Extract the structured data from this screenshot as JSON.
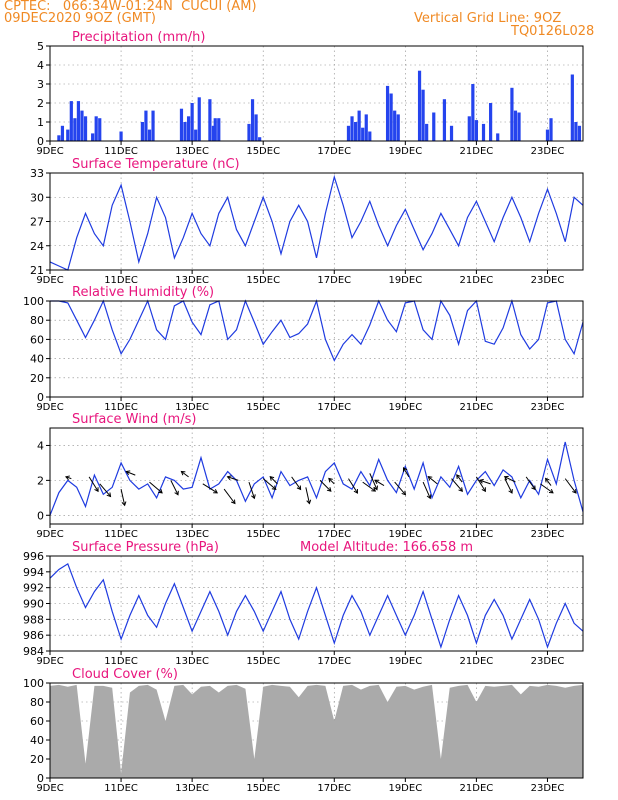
{
  "header": {
    "line1": "CPTEC:   066:34W-01:24N  CUCUI (AM)",
    "line2": "09DEC2020 9OZ (GMT)",
    "grid_note": "Vertical Grid Line: 9OZ",
    "code": "TQ0126L028"
  },
  "colors": {
    "header": "#f08a24",
    "title": "#e8157d",
    "series": "#1f3be0",
    "bars": "#2544ee",
    "cloud": "#aaaaaa",
    "arrows": "#000000"
  },
  "x_axis": {
    "ticks": [
      "9DEC",
      "11DEC",
      "13DEC",
      "15DEC",
      "17DEC",
      "19DEC",
      "21DEC",
      "23DEC"
    ],
    "tick_positions": [
      0,
      2,
      4,
      6,
      8,
      10,
      12,
      14
    ],
    "range": [
      0,
      15
    ]
  },
  "chart_data": [
    {
      "type": "bar",
      "title": "Precipitation (mm/h)",
      "ylim": [
        0,
        5
      ],
      "yticks": [
        0,
        1,
        2,
        3,
        4,
        5
      ],
      "x": [
        0.25,
        0.35,
        0.5,
        0.6,
        0.7,
        0.8,
        0.9,
        1.0,
        1.2,
        1.3,
        1.4,
        2.0,
        2.6,
        2.7,
        2.8,
        2.9,
        3.7,
        3.8,
        3.9,
        4.0,
        4.1,
        4.2,
        4.5,
        4.6,
        4.65,
        4.75,
        5.6,
        5.7,
        5.8,
        5.9,
        8.4,
        8.5,
        8.6,
        8.7,
        8.8,
        8.9,
        9.0,
        9.5,
        9.6,
        9.7,
        9.8,
        10.4,
        10.5,
        10.6,
        10.8,
        11.1,
        11.3,
        11.8,
        11.9,
        12.0,
        12.2,
        12.4,
        12.6,
        13.0,
        13.1,
        13.2,
        14.0,
        14.1,
        14.7,
        14.8,
        14.9
      ],
      "values": [
        0.3,
        0.8,
        0.6,
        2.1,
        1.2,
        2.1,
        1.6,
        1.3,
        0.4,
        1.3,
        1.2,
        0.5,
        1.0,
        1.6,
        0.6,
        1.6,
        1.7,
        1.0,
        1.3,
        2.0,
        0.6,
        2.3,
        2.2,
        0.8,
        1.2,
        1.2,
        0.9,
        2.2,
        1.4,
        0.2,
        0.8,
        1.3,
        1.0,
        1.6,
        0.7,
        1.4,
        0.5,
        2.9,
        2.5,
        1.6,
        1.4,
        3.7,
        2.7,
        0.9,
        1.5,
        2.2,
        0.8,
        1.3,
        3.0,
        1.1,
        0.9,
        2.0,
        0.4,
        2.8,
        1.6,
        1.5,
        0.6,
        1.2,
        3.5,
        1.0,
        0.8
      ]
    },
    {
      "type": "line",
      "title": "Surface Temperature (nC)",
      "ylim": [
        21,
        33
      ],
      "yticks": [
        21,
        24,
        27,
        30,
        33
      ],
      "x": [
        0,
        0.25,
        0.5,
        0.75,
        1.0,
        1.25,
        1.5,
        1.75,
        2.0,
        2.25,
        2.5,
        2.75,
        3.0,
        3.25,
        3.5,
        3.75,
        4.0,
        4.25,
        4.5,
        4.75,
        5.0,
        5.25,
        5.5,
        5.75,
        6.0,
        6.25,
        6.5,
        6.75,
        7.0,
        7.25,
        7.5,
        7.75,
        8.0,
        8.25,
        8.5,
        8.75,
        9.0,
        9.25,
        9.5,
        9.75,
        10.0,
        10.25,
        10.5,
        10.75,
        11.0,
        11.25,
        11.5,
        11.75,
        12.0,
        12.25,
        12.5,
        12.75,
        13.0,
        13.25,
        13.5,
        13.75,
        14.0,
        14.25,
        14.5,
        14.75,
        15.0
      ],
      "values": [
        22.0,
        21.5,
        21.0,
        25.0,
        28.0,
        25.5,
        24.0,
        29.0,
        31.5,
        27.0,
        22.0,
        25.5,
        30.0,
        27.5,
        22.5,
        25.0,
        28.0,
        25.5,
        24.0,
        28.0,
        30.0,
        26.0,
        24.0,
        27.0,
        30.0,
        27.0,
        23.0,
        27.0,
        29.0,
        27.0,
        22.5,
        28.0,
        32.5,
        29.0,
        25.0,
        27.0,
        29.5,
        26.5,
        24.0,
        26.5,
        28.5,
        26.0,
        23.5,
        25.5,
        28.0,
        26.0,
        24.0,
        27.5,
        29.5,
        27.0,
        24.5,
        27.5,
        30.0,
        27.5,
        24.5,
        28.0,
        31.0,
        28.0,
        24.5,
        30.0,
        29.0
      ]
    },
    {
      "type": "line",
      "title": "Relative Humidity (%)",
      "ylim": [
        0,
        100
      ],
      "yticks": [
        0,
        20,
        40,
        60,
        80,
        100
      ],
      "x": [
        0,
        0.25,
        0.5,
        0.75,
        1.0,
        1.25,
        1.5,
        1.75,
        2.0,
        2.25,
        2.5,
        2.75,
        3.0,
        3.25,
        3.5,
        3.75,
        4.0,
        4.25,
        4.5,
        4.75,
        5.0,
        5.25,
        5.5,
        5.75,
        6.0,
        6.25,
        6.5,
        6.75,
        7.0,
        7.25,
        7.5,
        7.75,
        8.0,
        8.25,
        8.5,
        8.75,
        9.0,
        9.25,
        9.5,
        9.75,
        10.0,
        10.25,
        10.5,
        10.75,
        11.0,
        11.25,
        11.5,
        11.75,
        12.0,
        12.25,
        12.5,
        12.75,
        13.0,
        13.25,
        13.5,
        13.75,
        14.0,
        14.25,
        14.5,
        14.75,
        15.0
      ],
      "values": [
        100,
        100,
        98,
        80,
        62,
        80,
        100,
        70,
        45,
        60,
        80,
        100,
        70,
        60,
        95,
        100,
        78,
        65,
        96,
        100,
        60,
        70,
        100,
        78,
        55,
        68,
        80,
        62,
        66,
        76,
        100,
        60,
        38,
        55,
        65,
        55,
        75,
        100,
        80,
        68,
        98,
        100,
        70,
        60,
        100,
        85,
        55,
        90,
        100,
        58,
        55,
        72,
        100,
        65,
        50,
        60,
        98,
        100,
        60,
        45,
        78
      ]
    },
    {
      "type": "line",
      "title": "Surface Wind (m/s)",
      "ylim": [
        -0.5,
        5
      ],
      "yticks": [
        0,
        2,
        4
      ],
      "x": [
        0,
        0.25,
        0.5,
        0.75,
        1.0,
        1.25,
        1.5,
        1.75,
        2.0,
        2.25,
        2.5,
        2.75,
        3.0,
        3.25,
        3.5,
        3.75,
        4.0,
        4.25,
        4.5,
        4.75,
        5.0,
        5.25,
        5.5,
        5.75,
        6.0,
        6.25,
        6.5,
        6.75,
        7.0,
        7.25,
        7.5,
        7.75,
        8.0,
        8.25,
        8.5,
        8.75,
        9.0,
        9.25,
        9.5,
        9.75,
        10.0,
        10.25,
        10.5,
        10.75,
        11.0,
        11.25,
        11.5,
        11.75,
        12.0,
        12.25,
        12.5,
        12.75,
        13.0,
        13.25,
        13.5,
        13.75,
        14.0,
        14.25,
        14.5,
        14.75,
        15.0
      ],
      "values": [
        0.0,
        1.3,
        2.0,
        1.6,
        0.5,
        2.3,
        1.2,
        1.6,
        3.0,
        2.0,
        1.5,
        1.8,
        1.0,
        2.2,
        2.0,
        1.5,
        1.6,
        3.3,
        1.5,
        1.8,
        2.5,
        2.0,
        0.8,
        1.8,
        2.2,
        1.0,
        2.5,
        1.7,
        2.0,
        2.2,
        1.0,
        2.5,
        3.0,
        1.8,
        1.5,
        2.5,
        1.7,
        3.2,
        2.0,
        1.3,
        2.8,
        1.5,
        3.0,
        1.0,
        2.2,
        1.6,
        2.8,
        1.2,
        2.0,
        2.5,
        1.7,
        2.6,
        2.2,
        1.0,
        2.0,
        1.2,
        3.2,
        1.8,
        4.2,
        2.0,
        0.2
      ],
      "arrows_x": [
        0.6,
        1.1,
        1.4,
        2.0,
        2.4,
        2.8,
        3.4,
        3.9,
        4.3,
        4.9,
        5.3,
        5.6,
        6.0,
        6.4,
        6.8,
        7.2,
        7.6,
        8.0,
        8.4,
        8.8,
        9.0,
        9.4,
        9.7,
        10.1,
        10.5,
        10.9,
        11.3,
        11.6,
        12.0,
        12.4,
        12.8,
        13.1,
        13.4,
        13.8,
        14.1,
        14.5
      ],
      "arrows_y": [
        2.1,
        2.2,
        1.8,
        1.5,
        2.3,
        1.9,
        2.0,
        2.2,
        1.8,
        1.5,
        2.0,
        1.9,
        2.1,
        1.8,
        2.2,
        1.6,
        2.0,
        1.8,
        2.1,
        1.9,
        2.4,
        1.7,
        1.9,
        2.2,
        1.9,
        1.8,
        2.1,
        1.9,
        2.2,
        1.8,
        2.1,
        1.9,
        2.2,
        1.8,
        1.7,
        2.1
      ],
      "arrows_u": [
        -0.3,
        0.5,
        0.6,
        0.2,
        -0.5,
        0.7,
        0.4,
        -0.4,
        0.8,
        0.6,
        -0.6,
        0.3,
        0.7,
        -0.4,
        0.5,
        0.2,
        0.6,
        -0.3,
        0.5,
        0.7,
        0.4,
        -0.5,
        0.6,
        -0.3,
        0.4,
        -0.5,
        0.6,
        -0.3,
        0.5,
        -0.6,
        0.4,
        -0.6,
        0.5,
        0.7,
        -0.3,
        0.6
      ],
      "arrows_v": [
        0.1,
        -0.8,
        -0.7,
        -0.9,
        0.2,
        -0.6,
        -0.8,
        0.3,
        -0.5,
        -0.8,
        0.2,
        -0.9,
        -0.6,
        0.4,
        -0.7,
        -0.9,
        -0.6,
        0.3,
        -0.8,
        -0.5,
        -0.9,
        0.3,
        -0.7,
        0.5,
        -0.9,
        0.4,
        -0.7,
        0.4,
        -0.8,
        0.2,
        -0.8,
        0.3,
        -0.7,
        -0.5,
        0.4,
        -0.8
      ]
    },
    {
      "type": "line",
      "title": "Surface Pressure (hPa)",
      "subtitle": "Model Altitude: 166.658  m",
      "ylim": [
        984,
        996
      ],
      "yticks": [
        984,
        986,
        988,
        990,
        992,
        994,
        996
      ],
      "x": [
        0,
        0.25,
        0.5,
        0.75,
        1.0,
        1.25,
        1.5,
        1.75,
        2.0,
        2.25,
        2.5,
        2.75,
        3.0,
        3.25,
        3.5,
        3.75,
        4.0,
        4.25,
        4.5,
        4.75,
        5.0,
        5.25,
        5.5,
        5.75,
        6.0,
        6.25,
        6.5,
        6.75,
        7.0,
        7.25,
        7.5,
        7.75,
        8.0,
        8.25,
        8.5,
        8.75,
        9.0,
        9.25,
        9.5,
        9.75,
        10.0,
        10.25,
        10.5,
        10.75,
        11.0,
        11.25,
        11.5,
        11.75,
        12.0,
        12.25,
        12.5,
        12.75,
        13.0,
        13.25,
        13.5,
        13.75,
        14.0,
        14.25,
        14.5,
        14.75,
        15.0
      ],
      "values": [
        993.2,
        994.3,
        995.0,
        992.0,
        989.5,
        991.5,
        993.0,
        989.0,
        985.5,
        988.5,
        991.0,
        988.5,
        987.0,
        990.0,
        992.5,
        989.5,
        986.5,
        989.0,
        991.5,
        989.0,
        986.0,
        989.0,
        991.0,
        989.0,
        986.5,
        989.0,
        991.5,
        988.0,
        985.5,
        989.0,
        992.0,
        988.5,
        985.0,
        988.5,
        991.0,
        989.0,
        986.0,
        988.5,
        991.0,
        988.5,
        986.0,
        988.5,
        991.5,
        988.0,
        984.5,
        988.0,
        991.0,
        988.5,
        985.0,
        988.5,
        990.5,
        988.5,
        985.5,
        988.0,
        990.5,
        988.0,
        984.5,
        987.5,
        990.0,
        987.5,
        986.5
      ]
    },
    {
      "type": "area",
      "title": "Cloud Cover (%)",
      "ylim": [
        0,
        100
      ],
      "yticks": [
        0,
        20,
        40,
        60,
        80,
        100
      ],
      "x": [
        0,
        0.25,
        0.5,
        0.75,
        1.0,
        1.25,
        1.5,
        1.75,
        2.0,
        2.25,
        2.5,
        2.75,
        3.0,
        3.25,
        3.5,
        3.75,
        4.0,
        4.25,
        4.5,
        4.75,
        5.0,
        5.25,
        5.5,
        5.75,
        6.0,
        6.25,
        6.5,
        6.75,
        7.0,
        7.25,
        7.5,
        7.75,
        8.0,
        8.25,
        8.5,
        8.75,
        9.0,
        9.25,
        9.5,
        9.75,
        10.0,
        10.25,
        10.5,
        10.75,
        11.0,
        11.25,
        11.5,
        11.75,
        12.0,
        12.25,
        12.5,
        12.75,
        13.0,
        13.25,
        13.5,
        13.75,
        14.0,
        14.25,
        14.5,
        14.75,
        15.0
      ],
      "values": [
        97,
        98,
        96,
        98,
        15,
        97,
        97,
        95,
        5,
        90,
        97,
        98,
        93,
        60,
        97,
        98,
        88,
        96,
        97,
        90,
        97,
        98,
        94,
        20,
        96,
        98,
        97,
        96,
        85,
        97,
        98,
        97,
        60,
        97,
        98,
        93,
        97,
        98,
        80,
        96,
        97,
        93,
        96,
        98,
        20,
        95,
        97,
        98,
        80,
        97,
        96,
        97,
        98,
        88,
        97,
        96,
        98,
        97,
        95,
        97,
        98
      ]
    }
  ]
}
